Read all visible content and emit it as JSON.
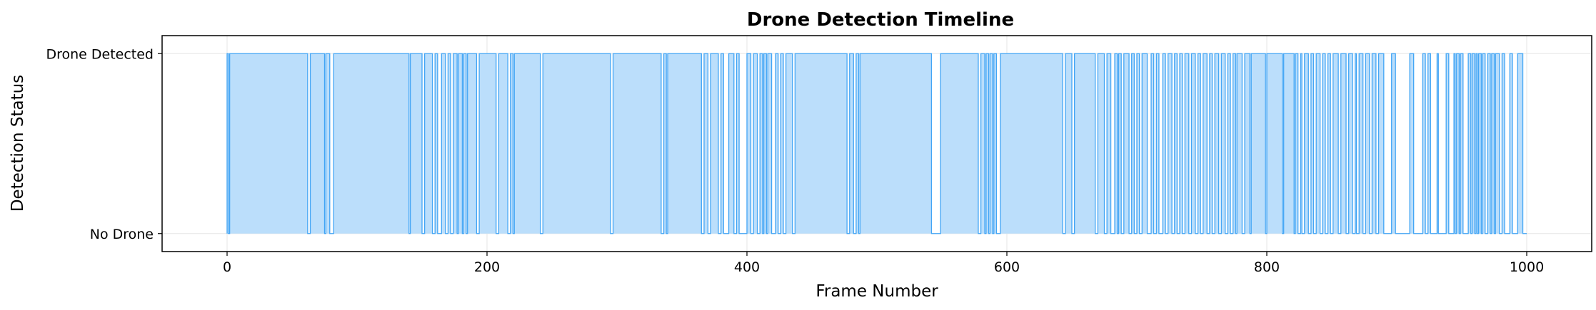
{
  "chart_data": {
    "type": "area",
    "title": "Drone Detection Timeline",
    "xlabel": "Frame Number",
    "ylabel": "Detection Status",
    "xlim": [
      -50,
      1050
    ],
    "ylim": [
      -0.1,
      1.1
    ],
    "x_ticks": [
      0,
      200,
      400,
      600,
      800,
      1000
    ],
    "y_ticks": [
      {
        "value": 0,
        "label": "No Drone"
      },
      {
        "value": 1,
        "label": "Drone Detected"
      }
    ],
    "grid": true,
    "colors": {
      "line": "#42a5f5",
      "fill": "#bbdefb"
    },
    "x_range": [
      0,
      1000
    ],
    "detected_intervals": [
      [
        0,
        1
      ],
      [
        2,
        62
      ],
      [
        64,
        75
      ],
      [
        76,
        79
      ],
      [
        82,
        140
      ],
      [
        141,
        150
      ],
      [
        152,
        158
      ],
      [
        160,
        162
      ],
      [
        165,
        168
      ],
      [
        170,
        172
      ],
      [
        174,
        177
      ],
      [
        178,
        181
      ],
      [
        182,
        184
      ],
      [
        185,
        192
      ],
      [
        194,
        207
      ],
      [
        209,
        216
      ],
      [
        218,
        220
      ],
      [
        221,
        241
      ],
      [
        243,
        295
      ],
      [
        297,
        334
      ],
      [
        336,
        338
      ],
      [
        339,
        365
      ],
      [
        367,
        370
      ],
      [
        372,
        378
      ],
      [
        380,
        382
      ],
      [
        386,
        390
      ],
      [
        392,
        394
      ],
      [
        400,
        403
      ],
      [
        405,
        408
      ],
      [
        410,
        412
      ],
      [
        413,
        415
      ],
      [
        416,
        419
      ],
      [
        422,
        424
      ],
      [
        426,
        428
      ],
      [
        430,
        435
      ],
      [
        437,
        477
      ],
      [
        479,
        482
      ],
      [
        484,
        486
      ],
      [
        487,
        542
      ],
      [
        549,
        578
      ],
      [
        580,
        583
      ],
      [
        584,
        586
      ],
      [
        587,
        589
      ],
      [
        590,
        592
      ],
      [
        595,
        643
      ],
      [
        645,
        650
      ],
      [
        652,
        668
      ],
      [
        670,
        675
      ],
      [
        677,
        680
      ],
      [
        683,
        685
      ],
      [
        686,
        688
      ],
      [
        690,
        694
      ],
      [
        696,
        698
      ],
      [
        700,
        702
      ],
      [
        704,
        708
      ],
      [
        711,
        713
      ],
      [
        715,
        717
      ],
      [
        720,
        722
      ],
      [
        724,
        727
      ],
      [
        729,
        731
      ],
      [
        733,
        735
      ],
      [
        737,
        740
      ],
      [
        742,
        745
      ],
      [
        747,
        749
      ],
      [
        751,
        754
      ],
      [
        756,
        758
      ],
      [
        760,
        763
      ],
      [
        765,
        768
      ],
      [
        770,
        772
      ],
      [
        774,
        776
      ],
      [
        777,
        781
      ],
      [
        783,
        787
      ],
      [
        788,
        799
      ],
      [
        800,
        812
      ],
      [
        813,
        821
      ],
      [
        822,
        824
      ],
      [
        826,
        827
      ],
      [
        829,
        832
      ],
      [
        834,
        836
      ],
      [
        838,
        841
      ],
      [
        843,
        845
      ],
      [
        847,
        849
      ],
      [
        851,
        855
      ],
      [
        857,
        861
      ],
      [
        863,
        866
      ],
      [
        868,
        869
      ],
      [
        871,
        874
      ],
      [
        876,
        879
      ],
      [
        881,
        884
      ],
      [
        886,
        890
      ],
      [
        896,
        899
      ],
      [
        910,
        913
      ],
      [
        920,
        922
      ],
      [
        924,
        926
      ],
      [
        931,
        932
      ],
      [
        938,
        940
      ],
      [
        944,
        945
      ],
      [
        946,
        948
      ],
      [
        949,
        951
      ],
      [
        955,
        957
      ],
      [
        958,
        960
      ],
      [
        961,
        962
      ],
      [
        963,
        965
      ],
      [
        966,
        968
      ],
      [
        970,
        972
      ],
      [
        973,
        975
      ],
      [
        976,
        979
      ],
      [
        981,
        983
      ],
      [
        987,
        989
      ],
      [
        993,
        997
      ]
    ]
  }
}
